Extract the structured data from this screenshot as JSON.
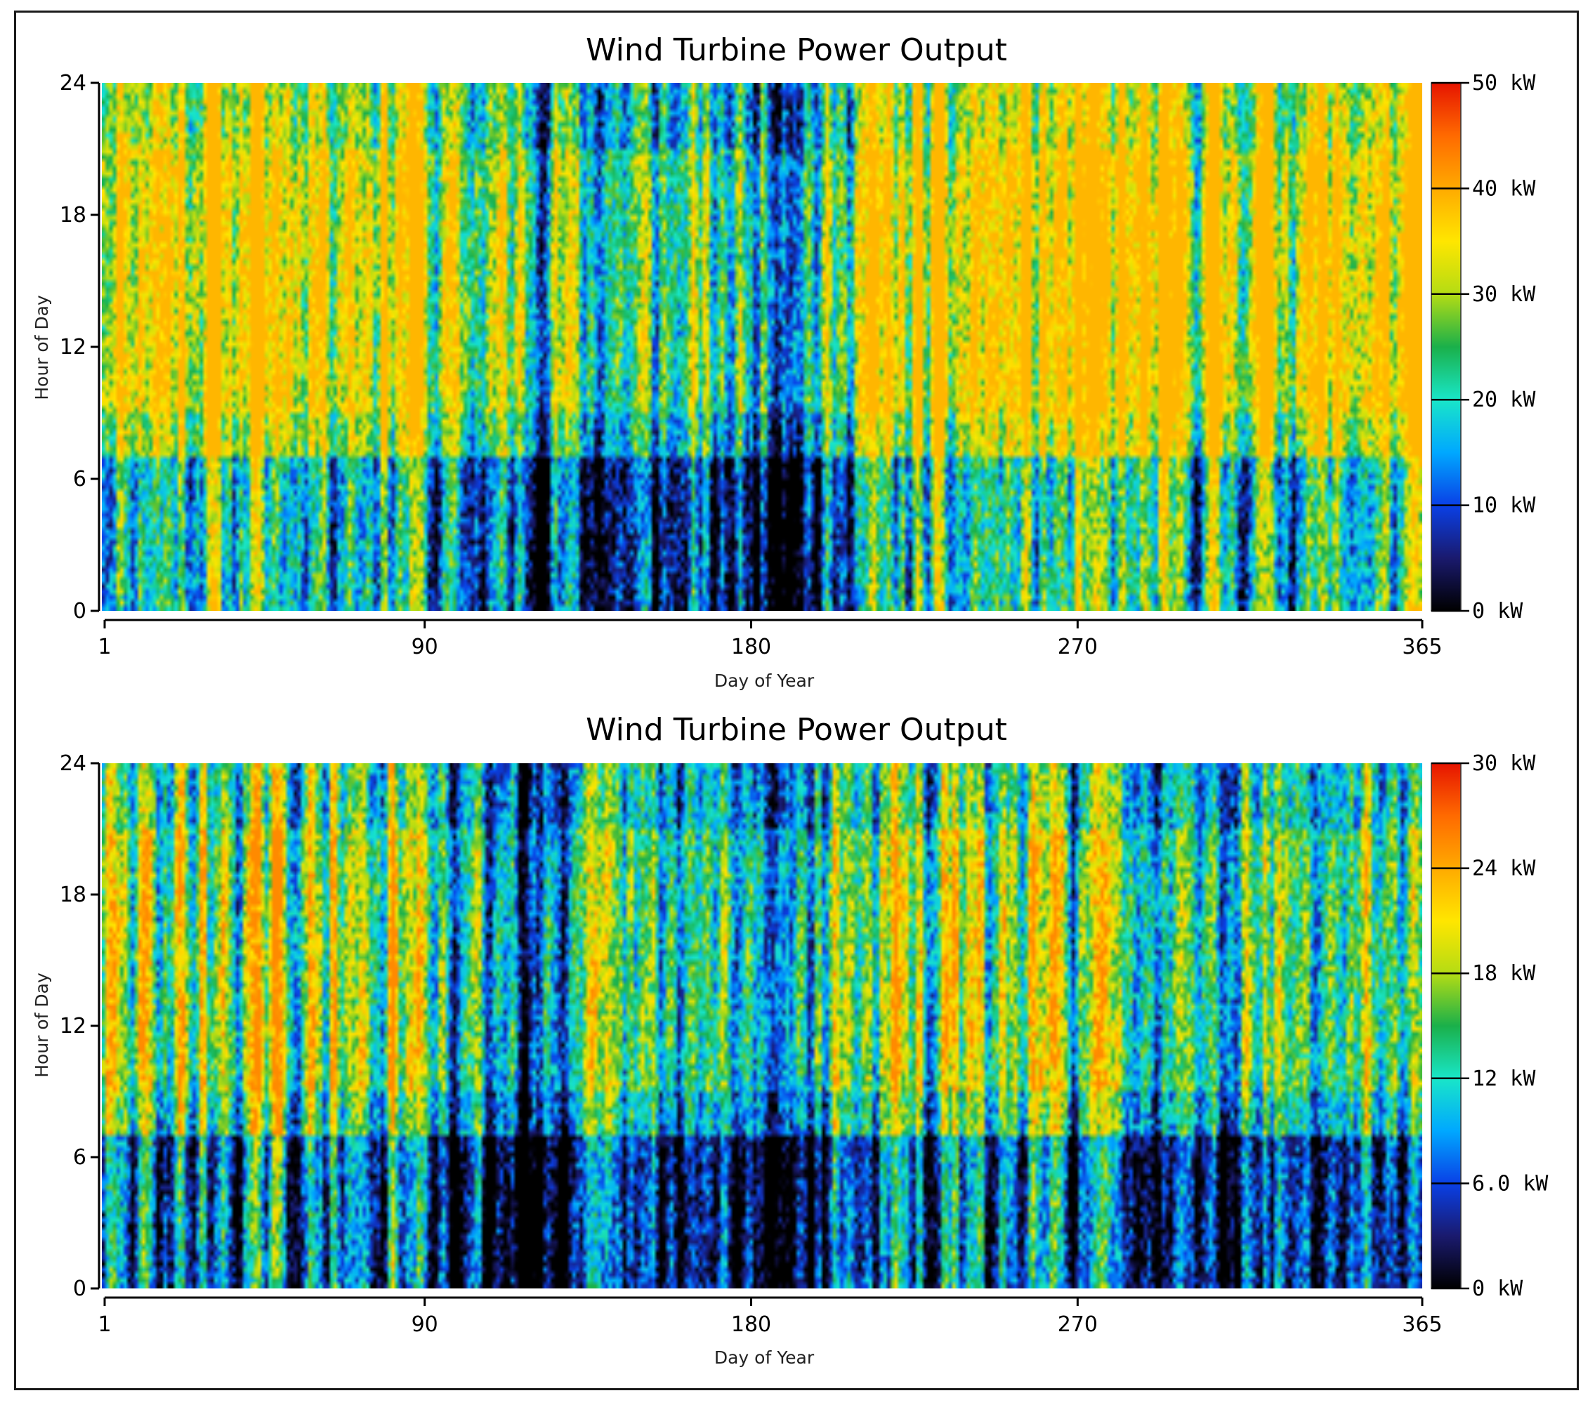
{
  "chart_data": [
    {
      "type": "heatmap",
      "title": "Wind Turbine Power Output",
      "xlabel": "Day of Year",
      "ylabel": "Hour of Day",
      "xlim": [
        1,
        365
      ],
      "ylim": [
        0,
        24
      ],
      "x_ticks": [
        1,
        90,
        180,
        270,
        365
      ],
      "y_ticks": [
        0,
        6,
        12,
        18,
        24
      ],
      "colorbar": {
        "min": 0,
        "max": 50,
        "unit": "kW",
        "tick_labels": [
          "0 kW",
          "10 kW",
          "20 kW",
          "30 kW",
          "40 kW",
          "50 kW"
        ],
        "colors": [
          "#000000",
          "#1a1a6e",
          "#0a40e6",
          "#00a8ff",
          "#19e6c8",
          "#1ab04a",
          "#b4dc14",
          "#ffe600",
          "#ffaa00",
          "#ff6a00",
          "#e61400"
        ]
      },
      "pattern_notes": "Higher output (orange/yellow, ~30-40 kW) concentrated in hours 8-22, strongest in days 1-90 and 240-365; lower output (black/blue) in early morning hours and mid-year (days 90-200).",
      "seed": 11
    },
    {
      "type": "heatmap",
      "title": "Wind Turbine Power Output",
      "xlabel": "Day of Year",
      "ylabel": "Hour of Day",
      "xlim": [
        1,
        365
      ],
      "ylim": [
        0,
        24
      ],
      "x_ticks": [
        1,
        90,
        180,
        270,
        365
      ],
      "y_ticks": [
        0,
        6,
        12,
        18,
        24
      ],
      "colorbar": {
        "min": 0,
        "max": 30,
        "unit": "kW",
        "tick_labels": [
          "0 kW",
          "6.0 kW",
          "12 kW",
          "18 kW",
          "24 kW",
          "30 kW"
        ],
        "colors": [
          "#000000",
          "#1a1a6e",
          "#0a40e6",
          "#00a8ff",
          "#19e6c8",
          "#1ab04a",
          "#b4dc14",
          "#ffe600",
          "#ffaa00",
          "#ff6a00",
          "#e61400"
        ]
      },
      "pattern_notes": "Mostly blue/black (0-10 kW) with orange patches (~20-24 kW) in hours 8-20, days 1-90 and 200-330.",
      "seed": 29
    }
  ]
}
